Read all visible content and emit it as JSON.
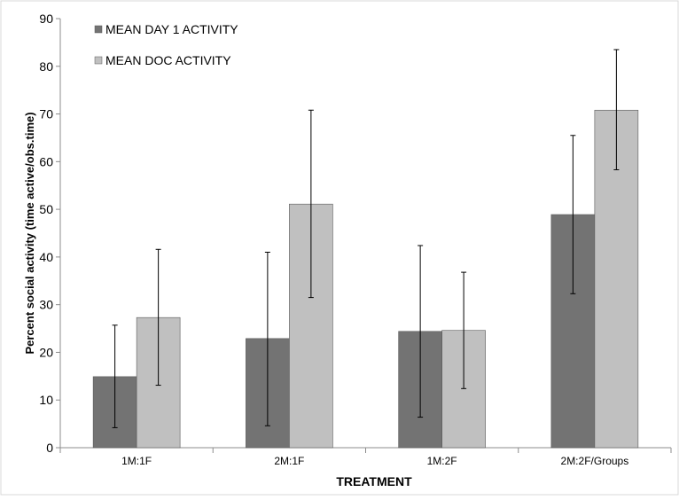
{
  "chart_data": {
    "type": "bar",
    "title": "",
    "xlabel": "TREATMENT",
    "ylabel": "Percent social activity (time active/obs.time)",
    "categories": [
      "1M:1F",
      "2M:1F",
      "1M:2F",
      "2M:2F/Groups"
    ],
    "ylim": [
      0,
      90
    ],
    "yticks": [
      0,
      10,
      20,
      30,
      40,
      50,
      60,
      70,
      80,
      90
    ],
    "grid": false,
    "legend_position": "top-left",
    "series": [
      {
        "name": "MEAN DAY 1 ACTIVITY",
        "color": "#737373",
        "values": [
          14.9,
          22.9,
          24.4,
          48.9
        ],
        "error_low": [
          4.2,
          4.6,
          6.4,
          32.3
        ],
        "error_high": [
          25.7,
          41.0,
          42.4,
          65.5
        ]
      },
      {
        "name": "MEAN DOC ACTIVITY",
        "color": "#c0c0c0",
        "values": [
          27.3,
          51.1,
          24.6,
          70.8
        ],
        "error_low": [
          13.1,
          31.5,
          12.4,
          58.3
        ],
        "error_high": [
          41.6,
          70.8,
          36.8,
          83.5
        ]
      }
    ]
  }
}
